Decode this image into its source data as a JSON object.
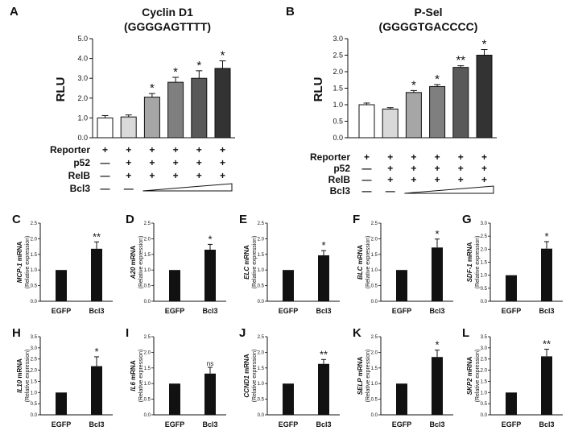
{
  "chart_data": [
    {
      "id": "A",
      "type": "bar",
      "panel_label": "A",
      "title": "Cyclin D1",
      "subtitle": "(GGGGAGTTTT)",
      "ylabel": "RLU",
      "ylim": [
        0,
        5.0
      ],
      "yticks": [
        "0.0",
        "1.0",
        "2.0",
        "3.0",
        "4.0",
        "5.0"
      ],
      "values": [
        1.0,
        1.05,
        2.05,
        2.8,
        3.0,
        3.5
      ],
      "errors": [
        0.12,
        0.1,
        0.18,
        0.25,
        0.38,
        0.38
      ],
      "fills": [
        "#ffffff",
        "#d9d9d9",
        "#a6a6a6",
        "#7f7f7f",
        "#595959",
        "#333333"
      ],
      "significance": [
        "",
        "",
        "*",
        "*",
        "*",
        "*"
      ],
      "conditions": [
        {
          "label": "Reporter",
          "marks": [
            "+",
            "+",
            "+",
            "+",
            "+",
            "+"
          ]
        },
        {
          "label": "p52",
          "marks": [
            "—",
            "+",
            "+",
            "+",
            "+",
            "+"
          ]
        },
        {
          "label": "RelB",
          "marks": [
            "—",
            "+",
            "+",
            "+",
            "+",
            "+"
          ]
        },
        {
          "label": "Bcl3",
          "marks": [
            "—",
            "—",
            "",
            "",
            "",
            ""
          ]
        }
      ]
    },
    {
      "id": "B",
      "type": "bar",
      "panel_label": "B",
      "title": "P-Sel",
      "subtitle": "(GGGGTGACCCC)",
      "ylabel": "RLU",
      "ylim": [
        0,
        3.0
      ],
      "yticks": [
        "0.0",
        "0.5",
        "1.0",
        "1.5",
        "2.0",
        "2.5",
        "3.0"
      ],
      "values": [
        1.0,
        0.87,
        1.37,
        1.55,
        2.13,
        2.5
      ],
      "errors": [
        0.05,
        0.04,
        0.06,
        0.06,
        0.05,
        0.17
      ],
      "fills": [
        "#ffffff",
        "#d9d9d9",
        "#a6a6a6",
        "#7f7f7f",
        "#595959",
        "#333333"
      ],
      "significance": [
        "",
        "",
        "*",
        "*",
        "**",
        "*"
      ],
      "conditions": [
        {
          "label": "Reporter",
          "marks": [
            "+",
            "+",
            "+",
            "+",
            "+",
            "+"
          ]
        },
        {
          "label": "p52",
          "marks": [
            "—",
            "+",
            "+",
            "+",
            "+",
            "+"
          ]
        },
        {
          "label": "RelB",
          "marks": [
            "—",
            "+",
            "+",
            "+",
            "+",
            "+"
          ]
        },
        {
          "label": "Bcl3",
          "marks": [
            "—",
            "—",
            "",
            "",
            "",
            ""
          ]
        }
      ]
    },
    {
      "id": "C",
      "type": "bar",
      "panel_label": "C",
      "ylabel_gene": "MCP-1",
      "ylabel_suffix": " mRNA",
      "ylabel_sub": "(Relative expression)",
      "categories": [
        "EGFP",
        "Bcl3"
      ],
      "values": [
        1.0,
        1.68
      ],
      "errors": [
        0.0,
        0.22
      ],
      "ylim": [
        0,
        2.5
      ],
      "yticks": [
        "0.0",
        "0.5",
        "1.0",
        "1.5",
        "2.0",
        "2.5"
      ],
      "significance": [
        "",
        "**"
      ]
    },
    {
      "id": "D",
      "type": "bar",
      "panel_label": "D",
      "ylabel_gene": "A20",
      "ylabel_suffix": " mRNA",
      "ylabel_sub": "(Relative expression)",
      "categories": [
        "EGFP",
        "Bcl3"
      ],
      "values": [
        1.0,
        1.65
      ],
      "errors": [
        0.0,
        0.17
      ],
      "ylim": [
        0,
        2.5
      ],
      "yticks": [
        "0.0",
        "0.5",
        "1.0",
        "1.5",
        "2.0",
        "2.5"
      ],
      "significance": [
        "",
        "*"
      ]
    },
    {
      "id": "E",
      "type": "bar",
      "panel_label": "E",
      "ylabel_gene": "ELC",
      "ylabel_suffix": " mRNA",
      "ylabel_sub": "(Relative expression)",
      "categories": [
        "EGFP",
        "Bcl3"
      ],
      "values": [
        1.0,
        1.47
      ],
      "errors": [
        0.0,
        0.15
      ],
      "ylim": [
        0,
        2.5
      ],
      "yticks": [
        "0.0",
        "0.5",
        "1.0",
        "1.5",
        "2.0",
        "2.5"
      ],
      "significance": [
        "",
        "*"
      ]
    },
    {
      "id": "F",
      "type": "bar",
      "panel_label": "F",
      "ylabel_gene": "BLC",
      "ylabel_suffix": " mRNA",
      "ylabel_sub": "(Relative expression)",
      "categories": [
        "EGFP",
        "Bcl3"
      ],
      "values": [
        1.0,
        1.72
      ],
      "errors": [
        0.0,
        0.27
      ],
      "ylim": [
        0,
        2.5
      ],
      "yticks": [
        "0.0",
        "0.5",
        "1.0",
        "1.5",
        "2.0",
        "2.5"
      ],
      "significance": [
        "",
        "*"
      ]
    },
    {
      "id": "G",
      "type": "bar",
      "panel_label": "G",
      "ylabel_gene": "SDF-1",
      "ylabel_suffix": " mRNA",
      "ylabel_sub": "(Relative expression)",
      "categories": [
        "EGFP",
        "Bcl3"
      ],
      "values": [
        1.0,
        2.02
      ],
      "errors": [
        0.0,
        0.27
      ],
      "ylim": [
        0,
        3.0
      ],
      "yticks": [
        "0.0",
        "0.5",
        "1.0",
        "1.5",
        "2.0",
        "2.5",
        "3.0"
      ],
      "significance": [
        "",
        "*"
      ]
    },
    {
      "id": "H",
      "type": "bar",
      "panel_label": "H",
      "ylabel_gene": "IL10",
      "ylabel_suffix": " mRNA",
      "ylabel_sub": "(Relative expression)",
      "categories": [
        "EGFP",
        "Bcl3"
      ],
      "values": [
        1.0,
        2.18
      ],
      "errors": [
        0.0,
        0.42
      ],
      "ylim": [
        0,
        3.5
      ],
      "yticks": [
        "0.0",
        "0.5",
        "1.0",
        "1.5",
        "2.0",
        "2.5",
        "3.0",
        "3.5"
      ],
      "significance": [
        "",
        "*"
      ]
    },
    {
      "id": "I",
      "type": "bar",
      "panel_label": "I",
      "ylabel_gene": "IL6",
      "ylabel_suffix": " mRNA",
      "ylabel_sub": "(Relative expression)",
      "categories": [
        "EGFP",
        "Bcl3"
      ],
      "values": [
        1.0,
        1.32
      ],
      "errors": [
        0.0,
        0.2
      ],
      "ylim": [
        0,
        2.5
      ],
      "yticks": [
        "0.0",
        "0.5",
        "1.0",
        "1.5",
        "2.0",
        "2.5"
      ],
      "significance": [
        "",
        "ns"
      ]
    },
    {
      "id": "J",
      "type": "bar",
      "panel_label": "J",
      "ylabel_gene": "CCND1",
      "ylabel_suffix": " mRNA",
      "ylabel_sub": "(Relative expression)",
      "categories": [
        "EGFP",
        "Bcl3"
      ],
      "values": [
        1.0,
        1.63
      ],
      "errors": [
        0.0,
        0.14
      ],
      "ylim": [
        0,
        2.5
      ],
      "yticks": [
        "0.0",
        "0.5",
        "1.0",
        "1.5",
        "2.0",
        "2.5"
      ],
      "significance": [
        "",
        "**"
      ]
    },
    {
      "id": "K",
      "type": "bar",
      "panel_label": "K",
      "ylabel_gene": "SELP",
      "ylabel_suffix": " mRNA",
      "ylabel_sub": "(Relative expression)",
      "categories": [
        "EGFP",
        "Bcl3"
      ],
      "values": [
        1.0,
        1.85
      ],
      "errors": [
        0.0,
        0.22
      ],
      "ylim": [
        0,
        2.5
      ],
      "yticks": [
        "0.0",
        "0.5",
        "1.0",
        "1.5",
        "2.0",
        "2.5"
      ],
      "significance": [
        "",
        "*"
      ]
    },
    {
      "id": "L",
      "type": "bar",
      "panel_label": "L",
      "ylabel_gene": "SKP2",
      "ylabel_suffix": " mRNA",
      "ylabel_sub": "(Relative expression)",
      "categories": [
        "EGFP",
        "Bcl3"
      ],
      "values": [
        1.0,
        2.62
      ],
      "errors": [
        0.0,
        0.32
      ],
      "ylim": [
        0,
        3.5
      ],
      "yticks": [
        "0.0",
        "0.5",
        "1.0",
        "1.5",
        "2.0",
        "2.5",
        "3.0",
        "3.5"
      ],
      "significance": [
        "",
        "**"
      ]
    }
  ]
}
